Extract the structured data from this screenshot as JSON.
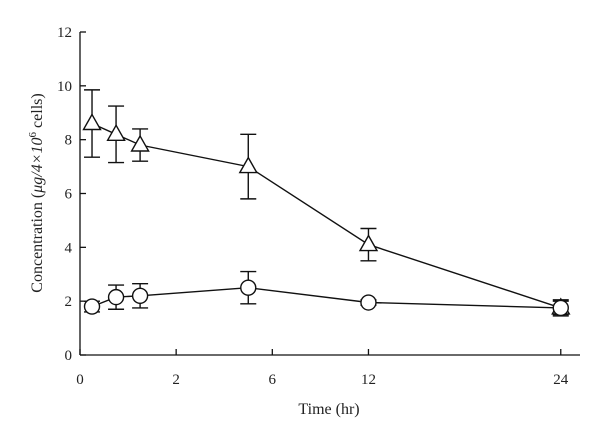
{
  "chart_data": {
    "type": "line",
    "xlabel": "Time (hr)",
    "ylabel_main": "Concentration (",
    "ylabel_mu": "μg/4×10",
    "ylabel_exp": "6",
    "ylabel_tail": " cells)",
    "x_ticks": [
      {
        "value": 0,
        "label": "0"
      },
      {
        "value": 2,
        "label": "2"
      },
      {
        "value": 4,
        "label": "6"
      },
      {
        "value": 6,
        "label": "12"
      },
      {
        "value": 10,
        "label": "24"
      }
    ],
    "xlim": [
      0,
      10.4
    ],
    "ylim": [
      0,
      12
    ],
    "y_ticks": [
      0,
      2,
      4,
      6,
      8,
      10,
      12
    ],
    "series": [
      {
        "marker": "triangle",
        "points": [
          {
            "x": 0.25,
            "y": 8.6,
            "err": 1.25
          },
          {
            "x": 0.75,
            "y": 8.2,
            "err": 1.05
          },
          {
            "x": 1.25,
            "y": 7.8,
            "err": 0.6
          },
          {
            "x": 3.5,
            "y": 7.0,
            "err": 1.2
          },
          {
            "x": 6.0,
            "y": 4.1,
            "err": 0.6
          },
          {
            "x": 10.0,
            "y": 1.75,
            "err": 0.25
          }
        ]
      },
      {
        "marker": "circle",
        "points": [
          {
            "x": 0.25,
            "y": 1.8,
            "err": 0.2
          },
          {
            "x": 0.75,
            "y": 2.15,
            "err": 0.45
          },
          {
            "x": 1.25,
            "y": 2.2,
            "err": 0.45
          },
          {
            "x": 3.5,
            "y": 2.5,
            "err": 0.6
          },
          {
            "x": 6.0,
            "y": 1.95,
            "err": 0.1
          },
          {
            "x": 10.0,
            "y": 1.75,
            "err": 0.3
          }
        ]
      }
    ]
  }
}
